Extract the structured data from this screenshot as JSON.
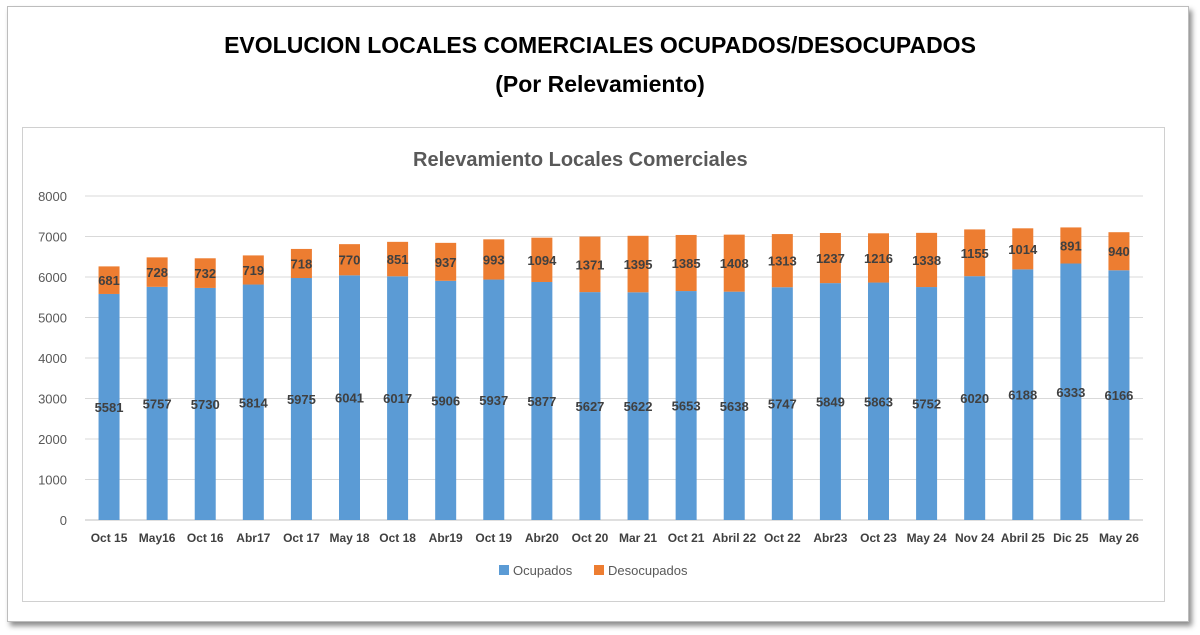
{
  "page": {
    "title_line1": "EVOLUCION LOCALES COMERCIALES OCUPADOS/DESOCUPADOS",
    "title_line2": "(Por Relevamiento)"
  },
  "chart_data": {
    "type": "bar",
    "stacked": true,
    "title": "Relevamiento Locales Comerciales",
    "xlabel": "",
    "ylabel": "",
    "ylim": [
      0,
      8000
    ],
    "yticks": [
      0,
      1000,
      2000,
      3000,
      4000,
      5000,
      6000,
      7000,
      8000
    ],
    "grid": true,
    "legend_position": "bottom",
    "categories": [
      "Oct 15",
      "May16",
      "Oct 16",
      "Abr17",
      "Oct 17",
      "May 18",
      "Oct 18",
      "Abr19",
      "Oct 19",
      "Abr20",
      "Oct 20",
      "Mar 21",
      "Oct 21",
      "Abril 22",
      "Oct 22",
      "Abr23",
      "Oct 23",
      "May 24",
      "Nov 24",
      "Abril 25",
      "Dic 25",
      "May 26"
    ],
    "series": [
      {
        "name": "Ocupados",
        "color": "#5b9bd5",
        "values": [
          5581,
          5757,
          5730,
          5814,
          5975,
          6041,
          6017,
          5906,
          5937,
          5877,
          5627,
          5622,
          5653,
          5638,
          5747,
          5849,
          5863,
          5752,
          6020,
          6188,
          6333,
          6166
        ]
      },
      {
        "name": "Desocupados",
        "color": "#ed7d31",
        "values": [
          681,
          728,
          732,
          719,
          718,
          770,
          851,
          937,
          993,
          1094,
          1371,
          1395,
          1385,
          1408,
          1313,
          1237,
          1216,
          1338,
          1155,
          1014,
          891,
          940
        ]
      }
    ]
  }
}
